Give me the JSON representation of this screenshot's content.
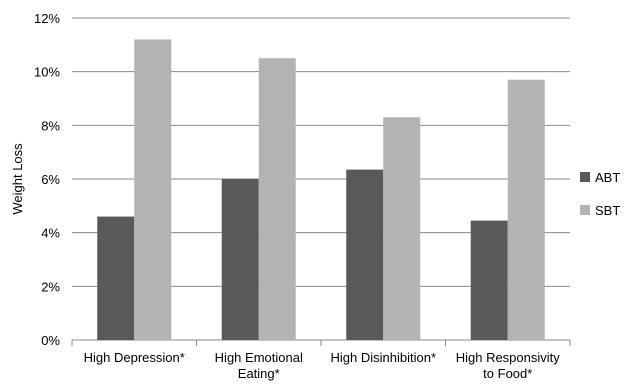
{
  "chart_data": {
    "type": "bar",
    "title": "",
    "xlabel": "",
    "ylabel": "Weight Loss",
    "ylim": [
      0,
      12
    ],
    "yticks": [
      "0%",
      "2%",
      "4%",
      "6%",
      "8%",
      "10%",
      "12%"
    ],
    "grid": true,
    "legend_position": "right",
    "categories": [
      [
        "High Depression*"
      ],
      [
        "High Emotional",
        "Eating*"
      ],
      [
        "High Disinhibition*"
      ],
      [
        "High Responsivity",
        "to Food*"
      ]
    ],
    "series": [
      {
        "name": "ABT",
        "color": "#595959",
        "values": [
          4.6,
          6.0,
          6.35,
          4.45
        ]
      },
      {
        "name": "SBT",
        "color": "#b3b3b3",
        "values": [
          11.2,
          10.5,
          8.3,
          9.7
        ]
      }
    ]
  }
}
